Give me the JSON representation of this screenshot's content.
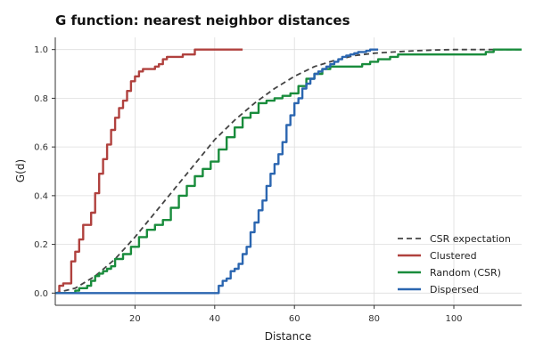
{
  "chart_data": {
    "type": "line",
    "title": "G function: nearest neighbor distances",
    "xlabel": "Distance",
    "ylabel": "G(d)",
    "xlim": [
      0,
      117
    ],
    "ylim": [
      -0.05,
      1.05
    ],
    "x_ticks": [
      20,
      40,
      60,
      80,
      100
    ],
    "x_tick_labels": [
      "20",
      "40",
      "60",
      "80",
      "100"
    ],
    "y_ticks": [
      0.0,
      0.2,
      0.4,
      0.6,
      0.8,
      1.0
    ],
    "y_tick_labels": [
      "0.0",
      "0.2",
      "0.4",
      "0.6",
      "0.8",
      "1.0"
    ],
    "grid": true,
    "legend_position": "lower-right",
    "series": [
      {
        "name": "CSR expectation",
        "color": "#444444",
        "dash": true,
        "step": false,
        "x": [
          0,
          5,
          10,
          15,
          20,
          25,
          30,
          35,
          40,
          45,
          50,
          55,
          60,
          65,
          70,
          75,
          80,
          85,
          90,
          95,
          100,
          105,
          110,
          117
        ],
        "y": [
          0.0,
          0.02,
          0.07,
          0.14,
          0.23,
          0.33,
          0.43,
          0.53,
          0.63,
          0.71,
          0.78,
          0.84,
          0.89,
          0.93,
          0.955,
          0.975,
          0.985,
          0.99,
          0.995,
          0.998,
          1.0,
          1.0,
          1.0,
          1.0
        ]
      },
      {
        "name": "Clustered",
        "color": "#b0413e",
        "dash": false,
        "step": true,
        "x": [
          0,
          1,
          2,
          3,
          4,
          5,
          6,
          7,
          8,
          9,
          10,
          11,
          12,
          13,
          14,
          15,
          16,
          17,
          18,
          19,
          20,
          21,
          22,
          23,
          25,
          26,
          27,
          28,
          30,
          31,
          32,
          33,
          35,
          38,
          40,
          43,
          45,
          47
        ],
        "y": [
          0.0,
          0.03,
          0.04,
          0.04,
          0.13,
          0.17,
          0.22,
          0.28,
          0.28,
          0.33,
          0.41,
          0.49,
          0.55,
          0.61,
          0.67,
          0.72,
          0.76,
          0.79,
          0.83,
          0.87,
          0.89,
          0.91,
          0.92,
          0.92,
          0.93,
          0.94,
          0.96,
          0.97,
          0.97,
          0.97,
          0.98,
          0.98,
          1.0,
          1.0,
          1.0,
          1.0,
          1.0,
          1.0
        ]
      },
      {
        "name": "Random (CSR)",
        "color": "#198c3c",
        "dash": false,
        "step": true,
        "x": [
          0,
          3,
          5,
          6,
          7,
          8,
          9,
          10,
          11,
          12,
          13,
          14,
          15,
          17,
          19,
          21,
          23,
          25,
          27,
          29,
          31,
          33,
          35,
          37,
          39,
          41,
          43,
          45,
          47,
          49,
          51,
          53,
          55,
          57,
          59,
          61,
          63,
          65,
          67,
          69,
          71,
          73,
          75,
          77,
          79,
          81,
          84,
          86,
          88,
          90,
          95,
          100,
          105,
          108,
          110,
          114,
          117
        ],
        "y": [
          0.0,
          0.0,
          0.01,
          0.02,
          0.02,
          0.03,
          0.05,
          0.07,
          0.08,
          0.09,
          0.1,
          0.11,
          0.14,
          0.16,
          0.19,
          0.23,
          0.26,
          0.28,
          0.3,
          0.35,
          0.4,
          0.44,
          0.48,
          0.51,
          0.54,
          0.59,
          0.64,
          0.68,
          0.72,
          0.74,
          0.78,
          0.79,
          0.8,
          0.81,
          0.82,
          0.85,
          0.88,
          0.9,
          0.92,
          0.93,
          0.93,
          0.93,
          0.93,
          0.94,
          0.95,
          0.96,
          0.97,
          0.98,
          0.98,
          0.98,
          0.98,
          0.98,
          0.98,
          0.99,
          1.0,
          1.0,
          1.0
        ]
      },
      {
        "name": "Dispersed",
        "color": "#2b66b0",
        "dash": false,
        "step": true,
        "x": [
          0,
          40,
          41,
          42,
          43,
          44,
          45,
          46,
          47,
          48,
          49,
          50,
          51,
          52,
          53,
          54,
          55,
          56,
          57,
          58,
          59,
          60,
          61,
          62,
          63,
          64,
          65,
          66,
          67,
          68,
          69,
          70,
          71,
          72,
          73,
          74,
          75,
          76,
          77,
          78,
          79,
          80,
          81
        ],
        "y": [
          0.0,
          0.0,
          0.03,
          0.05,
          0.06,
          0.09,
          0.1,
          0.12,
          0.16,
          0.19,
          0.25,
          0.29,
          0.34,
          0.38,
          0.44,
          0.49,
          0.53,
          0.57,
          0.62,
          0.69,
          0.73,
          0.78,
          0.8,
          0.84,
          0.86,
          0.88,
          0.9,
          0.91,
          0.92,
          0.93,
          0.94,
          0.95,
          0.96,
          0.97,
          0.975,
          0.98,
          0.985,
          0.99,
          0.99,
          0.995,
          1.0,
          1.0,
          1.0
        ]
      }
    ]
  }
}
